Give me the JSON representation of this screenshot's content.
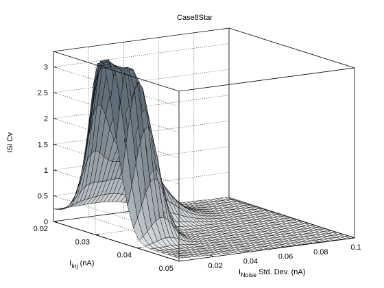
{
  "chart_data": {
    "type": "surface",
    "title": "Case8Star",
    "zlabel": "ISI Cv",
    "ylabel": {
      "prefix": "I",
      "sub": "Inj",
      "suffix": " (nA)"
    },
    "xlabel": {
      "prefix": "I",
      "sub": "Noise",
      "suffix": " Std. Dev. (nA)"
    },
    "xlim": [
      0,
      0.1
    ],
    "ylim": [
      0.02,
      0.05
    ],
    "zlim": [
      0,
      3.3
    ],
    "xticks": [
      "0.02",
      "0.04",
      "0.06",
      "0.08",
      "0.1"
    ],
    "yticks": [
      "0.02",
      "0.03",
      "0.04",
      "0.05"
    ],
    "zticks": [
      "0",
      "0.5",
      "1",
      "1.5",
      "2",
      "2.5",
      "3"
    ],
    "grid": true,
    "surface_description": "ISI Cv as a function of injected current and noise std. dev.",
    "peaks": [
      {
        "i_noise": 0.003,
        "i_inj": 0.031,
        "isi_cv": 3.3
      },
      {
        "i_noise": 0.012,
        "i_inj": 0.0275,
        "isi_cv": 2.4
      },
      {
        "i_noise": 0.006,
        "i_inj": 0.0345,
        "isi_cv": 1.6
      },
      {
        "i_noise": 0.01,
        "i_inj": 0.036,
        "isi_cv": 1.3
      },
      {
        "i_noise": 0.015,
        "i_inj": 0.037,
        "isi_cv": 1.05
      }
    ],
    "colors": {
      "surface_low": "#ffffff",
      "surface_high": "#5f6d78",
      "mesh": "#000000",
      "grid": "#000000"
    }
  }
}
